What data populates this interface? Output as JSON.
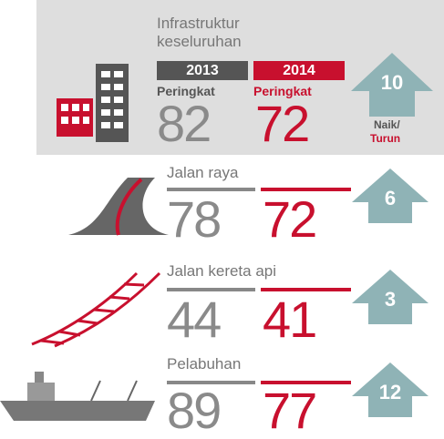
{
  "overall": {
    "label": "Infrastruktur keseluruhan",
    "year_a": "2013",
    "year_b": "2014",
    "rank_a": "Peringkat",
    "rank_b": "Peringkat",
    "value_a": 82,
    "value_b": 72,
    "change": 10,
    "change_label_a": "Naik/",
    "change_label_b": "Turun"
  },
  "rows": [
    {
      "label": "Jalan raya",
      "value_a": 78,
      "value_b": 72,
      "change": 6
    },
    {
      "label": "Jalan kereta api",
      "value_a": 44,
      "value_b": 41,
      "change": 3
    },
    {
      "label": "Pelabuhan",
      "value_a": 89,
      "value_b": 77,
      "change": 12
    }
  ]
}
